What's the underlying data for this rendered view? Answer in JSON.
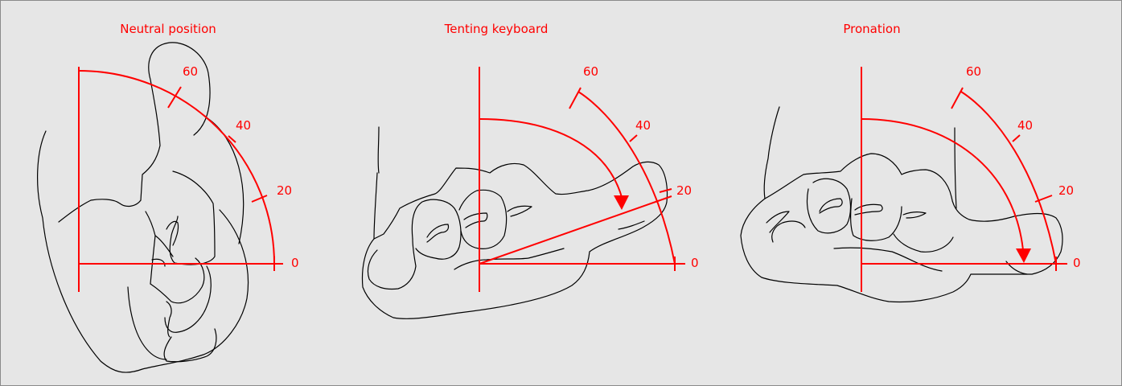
{
  "panels": [
    {
      "title": "Neutral position",
      "ticks": {
        "t60": "60",
        "t40": "40",
        "t20": "20",
        "t0": "0"
      }
    },
    {
      "title": "Tenting keyboard",
      "ticks": {
        "t60": "60",
        "t40": "40",
        "t20": "20",
        "t0": "0"
      }
    },
    {
      "title": "Pronation",
      "ticks": {
        "t60": "60",
        "t40": "40",
        "t20": "20",
        "t0": "0"
      }
    }
  ],
  "colors": {
    "background": "#e6e6e6",
    "accent": "#ff0000",
    "line": "#000000"
  }
}
